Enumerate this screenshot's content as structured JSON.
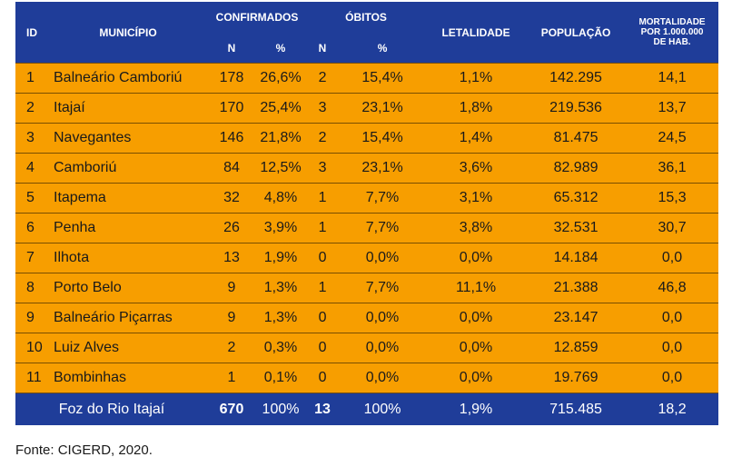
{
  "headers": {
    "id": "ID",
    "municipio": "MUNICÍPIO",
    "confirmados": "CONFIRMADOS",
    "obitos": "ÓBITOS",
    "n1": "N",
    "pct1": "%",
    "n2": "N",
    "pct2": "%",
    "letalidade": "LETALIDADE",
    "populacao": "POPULAÇÃO",
    "mortalidade_l1": "MORTALIDADE",
    "mortalidade_l2": "POR 1.000.000",
    "mortalidade_l3": "DE HAB."
  },
  "rows": [
    {
      "id": "1",
      "municipio": "Balneário Camboriú",
      "conf_n": "178",
      "conf_pct": "26,6%",
      "obit_n": "2",
      "obit_pct": "15,4%",
      "letalidade": "1,1%",
      "populacao": "142.295",
      "mortalidade": "14,1"
    },
    {
      "id": "2",
      "municipio": "Itajaí",
      "conf_n": "170",
      "conf_pct": "25,4%",
      "obit_n": "3",
      "obit_pct": "23,1%",
      "letalidade": "1,8%",
      "populacao": "219.536",
      "mortalidade": "13,7"
    },
    {
      "id": "3",
      "municipio": "Navegantes",
      "conf_n": "146",
      "conf_pct": "21,8%",
      "obit_n": "2",
      "obit_pct": "15,4%",
      "letalidade": "1,4%",
      "populacao": "81.475",
      "mortalidade": "24,5"
    },
    {
      "id": "4",
      "municipio": "Camboriú",
      "conf_n": "84",
      "conf_pct": "12,5%",
      "obit_n": "3",
      "obit_pct": "23,1%",
      "letalidade": "3,6%",
      "populacao": "82.989",
      "mortalidade": "36,1"
    },
    {
      "id": "5",
      "municipio": "Itapema",
      "conf_n": "32",
      "conf_pct": "4,8%",
      "obit_n": "1",
      "obit_pct": "7,7%",
      "letalidade": "3,1%",
      "populacao": "65.312",
      "mortalidade": "15,3"
    },
    {
      "id": "6",
      "municipio": "Penha",
      "conf_n": "26",
      "conf_pct": "3,9%",
      "obit_n": "1",
      "obit_pct": "7,7%",
      "letalidade": "3,8%",
      "populacao": "32.531",
      "mortalidade": "30,7"
    },
    {
      "id": "7",
      "municipio": "Ilhota",
      "conf_n": "13",
      "conf_pct": "1,9%",
      "obit_n": "0",
      "obit_pct": "0,0%",
      "letalidade": "0,0%",
      "populacao": "14.184",
      "mortalidade": "0,0"
    },
    {
      "id": "8",
      "municipio": "Porto Belo",
      "conf_n": "9",
      "conf_pct": "1,3%",
      "obit_n": "1",
      "obit_pct": "7,7%",
      "letalidade": "11,1%",
      "populacao": "21.388",
      "mortalidade": "46,8"
    },
    {
      "id": "9",
      "municipio": "Balneário Piçarras",
      "conf_n": "9",
      "conf_pct": "1,3%",
      "obit_n": "0",
      "obit_pct": "0,0%",
      "letalidade": "0,0%",
      "populacao": "23.147",
      "mortalidade": "0,0"
    },
    {
      "id": "10",
      "municipio": "Luiz Alves",
      "conf_n": "2",
      "conf_pct": "0,3%",
      "obit_n": "0",
      "obit_pct": "0,0%",
      "letalidade": "0,0%",
      "populacao": "12.859",
      "mortalidade": "0,0"
    },
    {
      "id": "11",
      "municipio": "Bombinhas",
      "conf_n": "1",
      "conf_pct": "0,1%",
      "obit_n": "0",
      "obit_pct": "0,0%",
      "letalidade": "0,0%",
      "populacao": "19.769",
      "mortalidade": "0,0"
    }
  ],
  "total": {
    "municipio": "Foz do Rio Itajaí",
    "conf_n": "670",
    "conf_pct": "100%",
    "obit_n": "13",
    "obit_pct": "100%",
    "letalidade": "1,9%",
    "populacao": "715.485",
    "mortalidade": "18,2"
  },
  "source": "Fonte: CIGERD, 2020.",
  "colors": {
    "header_bg": "#1f3d99",
    "row_bg": "#f79e00"
  }
}
